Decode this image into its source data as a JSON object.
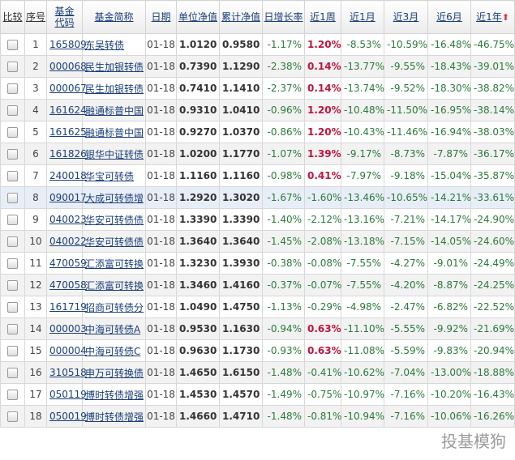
{
  "headers": [
    "比较",
    "序号",
    "基金代码",
    "基金简称",
    "日期",
    "单位净值",
    "累计净值",
    "日增长率",
    "近1周",
    "近1月",
    "近3月",
    "近6月",
    "近1年"
  ],
  "sort_icon": "arrow-up-icon",
  "colors": {
    "up": "#c0143c",
    "down": "#2a7a3a",
    "link": "#1a3f7a",
    "highlight": "#e8eef8"
  },
  "watermark": "投基模狗",
  "highlighted_row": 8,
  "rows": [
    [
      "1",
      "165809",
      "东吴转债",
      "01-18",
      "1.0120",
      "0.9580",
      "-1.17%",
      "1.20%",
      "-8.53%",
      "-10.59%",
      "-16.48%",
      "-46.75%"
    ],
    [
      "2",
      "000068",
      "民生加银转债",
      "01-18",
      "0.7390",
      "1.1290",
      "-2.38%",
      "0.14%",
      "-13.77%",
      "-9.55%",
      "-18.43%",
      "-39.01%"
    ],
    [
      "3",
      "000067",
      "民生加银转债",
      "01-18",
      "0.7410",
      "1.1410",
      "-2.37%",
      "0.14%",
      "-13.74%",
      "-9.52%",
      "-18.30%",
      "-38.82%"
    ],
    [
      "4",
      "161624",
      "融通标普中国",
      "01-18",
      "0.9310",
      "1.0410",
      "-0.96%",
      "1.20%",
      "-10.48%",
      "-11.50%",
      "-16.95%",
      "-38.14%"
    ],
    [
      "5",
      "161625",
      "融通标普中国",
      "01-18",
      "0.9270",
      "1.0370",
      "-0.86%",
      "1.20%",
      "-10.43%",
      "-11.46%",
      "-16.94%",
      "-38.03%"
    ],
    [
      "6",
      "161826",
      "银华中证转债",
      "01-18",
      "1.0200",
      "1.1770",
      "-1.07%",
      "1.39%",
      "-9.17%",
      "-8.73%",
      "-7.87%",
      "-36.17%"
    ],
    [
      "7",
      "240018",
      "华宝可转债",
      "01-18",
      "1.1160",
      "1.1160",
      "-0.98%",
      "0.41%",
      "-7.97%",
      "-9.18%",
      "-15.04%",
      "-35.87%"
    ],
    [
      "8",
      "090017",
      "大成可转债增",
      "01-18",
      "1.2920",
      "1.3020",
      "-1.67%",
      "-1.60%",
      "-13.46%",
      "-10.65%",
      "-14.21%",
      "-33.61%"
    ],
    [
      "9",
      "040023",
      "华安可转债债",
      "01-18",
      "1.3390",
      "1.3390",
      "-1.40%",
      "-2.12%",
      "-13.16%",
      "-7.21%",
      "-14.17%",
      "-24.90%"
    ],
    [
      "10",
      "040022",
      "华安可转债债",
      "01-18",
      "1.3640",
      "1.3640",
      "-1.45%",
      "-2.08%",
      "-13.18%",
      "-7.15%",
      "-14.05%",
      "-24.60%"
    ],
    [
      "11",
      "470059",
      "汇添富可转换",
      "01-18",
      "1.3230",
      "1.3930",
      "-0.38%",
      "-0.08%",
      "-7.55%",
      "-4.27%",
      "-9.01%",
      "-24.49%"
    ],
    [
      "12",
      "470058",
      "汇添富可转换",
      "01-18",
      "1.3460",
      "1.4160",
      "-0.37%",
      "-0.07%",
      "-7.55%",
      "-4.20%",
      "-8.87%",
      "-24.25%"
    ],
    [
      "13",
      "161719",
      "招商可转债分",
      "01-18",
      "1.0490",
      "1.4750",
      "-1.13%",
      "-0.29%",
      "-4.98%",
      "-2.47%",
      "-6.82%",
      "-22.52%"
    ],
    [
      "14",
      "000003",
      "中海可转债A",
      "01-18",
      "0.9530",
      "1.1630",
      "-0.94%",
      "0.63%",
      "-11.10%",
      "-5.55%",
      "-9.92%",
      "-21.69%"
    ],
    [
      "15",
      "000004",
      "中海可转债C",
      "01-18",
      "0.9630",
      "1.1730",
      "-0.93%",
      "0.63%",
      "-11.08%",
      "-5.59%",
      "-9.83%",
      "-20.94%"
    ],
    [
      "16",
      "310518",
      "申万可转换债",
      "01-18",
      "1.4650",
      "1.6150",
      "-1.48%",
      "-0.41%",
      "-10.62%",
      "-7.04%",
      "-13.00%",
      "-18.88%"
    ],
    [
      "17",
      "050119",
      "博时转债增强",
      "01-18",
      "1.4530",
      "1.4570",
      "-1.49%",
      "-0.75%",
      "-10.97%",
      "-7.16%",
      "-10.20%",
      "-16.43%"
    ],
    [
      "18",
      "050019",
      "博时转债增强",
      "01-18",
      "1.4660",
      "1.4710",
      "-1.48%",
      "-0.81%",
      "-10.94%",
      "-7.16%",
      "-10.06%",
      "-16.26%"
    ]
  ]
}
